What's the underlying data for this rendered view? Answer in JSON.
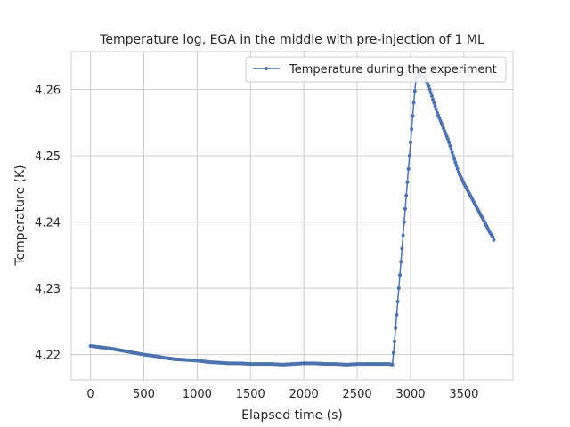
{
  "chart_data": {
    "type": "line",
    "title": "Temperature log, EGA in the middle with pre-injection of 1 ML",
    "xlabel": "Elapsed time (s)",
    "ylabel": "Temperature (K)",
    "xlim": [
      -180,
      3960
    ],
    "ylim": [
      4.2162,
      4.2657
    ],
    "xticks": [
      0,
      500,
      1000,
      1500,
      2000,
      2500,
      3000,
      3500
    ],
    "yticks": [
      4.22,
      4.23,
      4.24,
      4.25,
      4.26
    ],
    "xtick_labels": [
      "0",
      "500",
      "1000",
      "1500",
      "2000",
      "2500",
      "3000",
      "3500"
    ],
    "ytick_labels": [
      "4.22",
      "4.23",
      "4.24",
      "4.25",
      "4.26"
    ],
    "grid": true,
    "legend_position": "top-right",
    "series_color": "#4c72b0",
    "series": [
      {
        "name": "Temperature during the experiment",
        "marker": "point",
        "x": [
          0,
          100,
          200,
          300,
          400,
          500,
          600,
          700,
          800,
          900,
          1000,
          1100,
          1200,
          1300,
          1400,
          1500,
          1600,
          1700,
          1800,
          1900,
          2000,
          2100,
          2200,
          2300,
          2400,
          2500,
          2600,
          2700,
          2800,
          2830,
          2850,
          2870,
          2890,
          2910,
          2930,
          2950,
          2970,
          2990,
          3010,
          3030,
          3050,
          3080,
          3110,
          3140,
          3170,
          3200,
          3250,
          3300,
          3350,
          3400,
          3450,
          3500,
          3550,
          3600,
          3650,
          3700,
          3740,
          3770,
          3780
        ],
        "y": [
          4.2213,
          4.2211,
          4.2209,
          4.2206,
          4.2203,
          4.22,
          4.2198,
          4.2195,
          4.2193,
          4.2192,
          4.2191,
          4.2189,
          4.2188,
          4.2187,
          4.2187,
          4.2186,
          4.2186,
          4.2186,
          4.2185,
          4.2186,
          4.2187,
          4.2187,
          4.2186,
          4.2186,
          4.2185,
          4.2186,
          4.2186,
          4.2186,
          4.2186,
          4.2185,
          4.222,
          4.226,
          4.23,
          4.234,
          4.238,
          4.242,
          4.246,
          4.25,
          4.254,
          4.258,
          4.2615,
          4.2625,
          4.262,
          4.2615,
          4.2605,
          4.259,
          4.2565,
          4.2545,
          4.2525,
          4.25,
          4.2475,
          4.2458,
          4.2443,
          4.2428,
          4.2413,
          4.2398,
          4.2385,
          4.2378,
          4.2373
        ]
      }
    ]
  }
}
